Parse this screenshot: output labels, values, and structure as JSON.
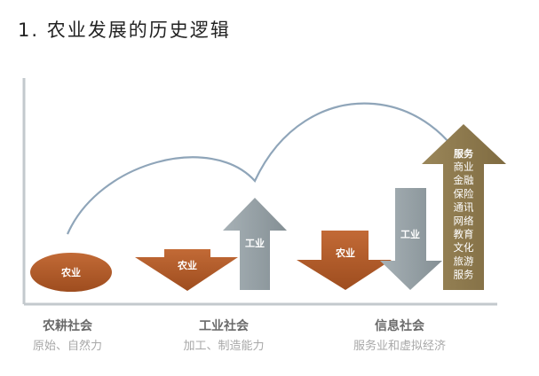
{
  "title": "1.  农业发展的历史逻辑",
  "eras": [
    {
      "name": "农耕社会",
      "desc": "原始、自然力"
    },
    {
      "name": "工业社会",
      "desc": "加工、制造能力"
    },
    {
      "name": "信息社会",
      "desc": "服务业和虚拟经济"
    }
  ],
  "shapes": {
    "ag_ellipse": "农业",
    "ag_down_1": "农业",
    "ind_up_1": "工业",
    "ag_down_2": "农业",
    "ind_down_2": "工业"
  },
  "services": {
    "header": "服务",
    "items": [
      "商业",
      "金融",
      "保险",
      "通讯",
      "网络",
      "教育",
      "文化",
      "旅游",
      "服务"
    ]
  },
  "colors": {
    "agriculture": "#b35a28",
    "industry": "#8e9a9f",
    "services": "#8f7a4e",
    "curve": "#8aa2b8",
    "axis": "#bfc5ca"
  }
}
